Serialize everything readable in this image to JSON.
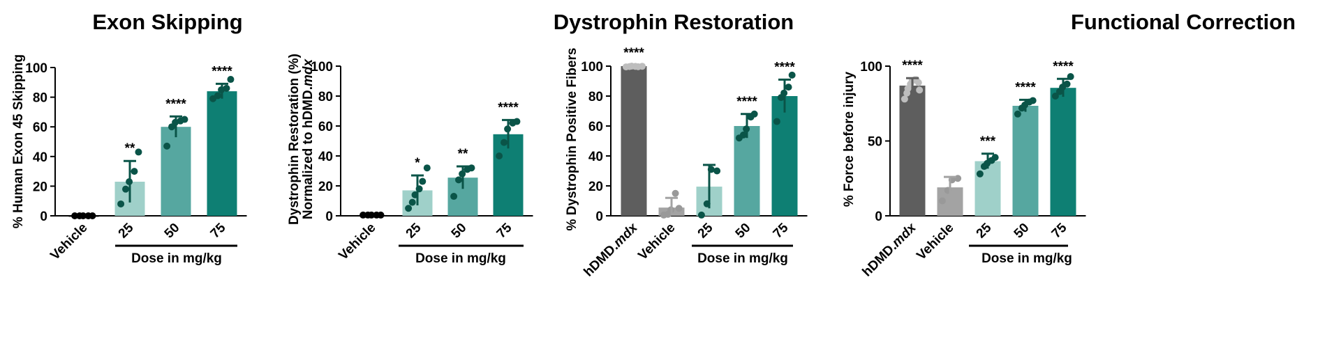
{
  "titles": {
    "exon": "Exon Skipping",
    "dystrophin": "Dystrophin Restoration",
    "functional": "Functional Correction"
  },
  "colors": {
    "vehicle_black": "#000000",
    "hdmd": "#5e5e5e",
    "vehicle_grey": "#a3a3a3",
    "dose25": "#9fd0c9",
    "dose50": "#56a7a0",
    "dose75": "#0e7f73",
    "point_dark": "#0a5448",
    "point_grey": "#999999",
    "point_light": "#bdbdbd"
  },
  "chart_data": [
    {
      "type": "bar",
      "title": "Exon Skipping",
      "ylabel": "% Human Exon 45 Skipping",
      "ylim": [
        0,
        100
      ],
      "yticks": [
        0,
        20,
        40,
        60,
        80,
        100
      ],
      "categories": [
        "Vehicle",
        "25",
        "50",
        "75"
      ],
      "values": [
        0.3,
        23,
        60,
        84
      ],
      "errors": [
        0.3,
        14,
        7,
        5
      ],
      "significance": [
        "",
        "**",
        "****",
        "****"
      ],
      "points": [
        [
          0,
          0,
          0,
          0,
          0
        ],
        [
          8,
          18,
          23,
          30,
          43
        ],
        [
          47,
          60,
          63,
          64,
          65
        ],
        [
          79,
          81,
          85,
          86,
          92
        ]
      ],
      "xgroup_label": "Dose in mg/kg",
      "bar_colors": [
        "#000000",
        "#9fd0c9",
        "#56a7a0",
        "#0e7f73"
      ]
    },
    {
      "type": "bar",
      "title": "",
      "ylabel": "Dystrophin Restoration (%)",
      "ylabel_line2_prefix": "Normalized to hDMD.",
      "ylabel_line2_italic": "mdx",
      "ylim": [
        0,
        100
      ],
      "yticks": [
        0,
        20,
        40,
        60,
        80,
        100
      ],
      "categories": [
        "Vehicle",
        "25",
        "50",
        "75"
      ],
      "values": [
        0.5,
        17,
        25.5,
        54.5
      ],
      "errors": [
        0.3,
        10,
        7.5,
        9.5
      ],
      "significance": [
        "",
        "*",
        "**",
        "****"
      ],
      "points": [
        [
          0.5,
          0.5,
          0.5,
          0.5,
          0.5
        ],
        [
          5,
          9,
          14,
          18,
          23,
          32
        ],
        [
          13,
          24,
          28,
          31,
          32
        ],
        [
          40,
          49,
          58,
          62,
          63
        ]
      ],
      "xgroup_label": "Dose in mg/kg",
      "bar_colors": [
        "#000000",
        "#9fd0c9",
        "#56a7a0",
        "#0e7f73"
      ]
    },
    {
      "type": "bar",
      "title": "",
      "ylabel": "% Dystrophin Positive Fibers",
      "ylim": [
        0,
        100
      ],
      "yticks": [
        0,
        20,
        40,
        60,
        80,
        100
      ],
      "categories": [
        "hDMD.mdx",
        "Vehicle",
        "25",
        "50",
        "75"
      ],
      "category_italic_suffix": "mdx",
      "values": [
        100,
        5.5,
        19.5,
        60,
        80
      ],
      "errors": [
        0.5,
        6.5,
        14.5,
        8,
        11
      ],
      "significance": [
        "****",
        "",
        "",
        "****",
        "****"
      ],
      "points": [
        [
          99.5,
          99.7,
          100,
          99.8,
          99.6,
          99.9
        ],
        [
          0.5,
          1,
          4,
          15,
          5
        ],
        [
          0.5,
          8,
          31,
          30
        ],
        [
          52,
          54,
          58,
          66,
          68
        ],
        [
          63,
          79,
          82,
          86,
          94
        ]
      ],
      "xgroup_label": "Dose in mg/kg",
      "bar_colors": [
        "#5e5e5e",
        "#a3a3a3",
        "#9fd0c9",
        "#56a7a0",
        "#0e7f73"
      ]
    },
    {
      "type": "bar",
      "title": "Functional Correction",
      "ylabel": "% Force before injury",
      "ylim": [
        0,
        100
      ],
      "yticks": [
        0,
        50,
        100
      ],
      "categories": [
        "hDMD.mdx",
        "Vehicle",
        "25",
        "50",
        "75"
      ],
      "category_italic_suffix": "mdx",
      "values": [
        87,
        19,
        36.5,
        73.5,
        85.5
      ],
      "errors": [
        5,
        7,
        5,
        4,
        6
      ],
      "significance": [
        "****",
        "",
        "***",
        "****",
        "****"
      ],
      "points": [
        [
          78,
          82,
          85,
          88,
          90,
          91,
          91,
          89,
          84
        ],
        [
          10,
          17,
          24,
          25
        ],
        [
          28,
          33,
          35,
          37,
          39
        ],
        [
          68,
          72,
          74,
          76,
          77
        ],
        [
          80,
          83,
          86,
          88,
          93
        ]
      ],
      "xgroup_label": "Dose in mg/kg",
      "bar_colors": [
        "#5e5e5e",
        "#a3a3a3",
        "#9fd0c9",
        "#56a7a0",
        "#0e7f73"
      ]
    }
  ]
}
